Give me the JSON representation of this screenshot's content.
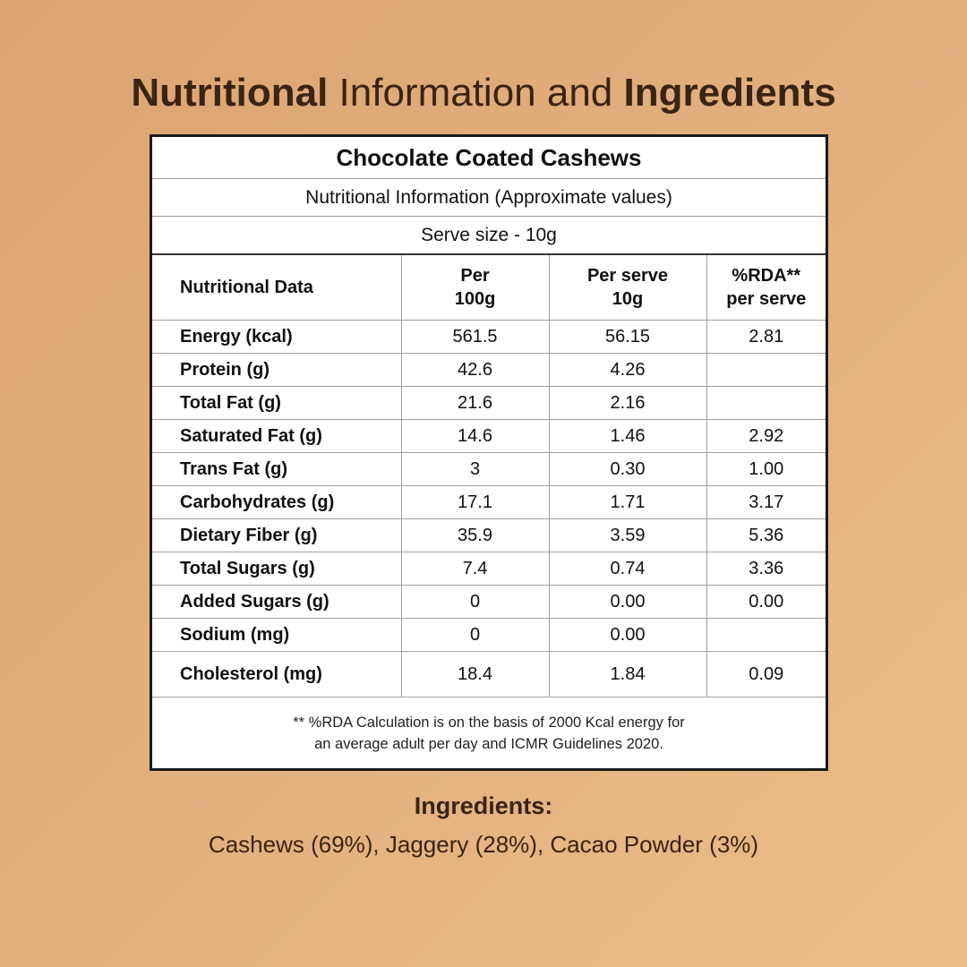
{
  "heading": {
    "part1": "Nutritional",
    "part2": " Information and ",
    "part3": "Ingredients"
  },
  "card": {
    "title": "Chocolate Coated Cashews",
    "subtitle": "Nutritional Information (Approximate values)",
    "serve_size": "Serve size - 10g",
    "headers": {
      "name": "Nutritional Data",
      "per100_l1": "Per",
      "per100_l2": "100g",
      "perserve_l1": "Per serve",
      "perserve_l2": "10g",
      "rda_l1": "%RDA**",
      "rda_l2": "per serve"
    },
    "rows": [
      {
        "name": "Energy (kcal)",
        "per100": "561.5",
        "perserve": "56.15",
        "rda": "2.81"
      },
      {
        "name": "Protein (g)",
        "per100": "42.6",
        "perserve": "4.26",
        "rda": ""
      },
      {
        "name": "Total Fat (g)",
        "per100": "21.6",
        "perserve": "2.16",
        "rda": ""
      },
      {
        "name": "Saturated Fat (g)",
        "per100": "14.6",
        "perserve": "1.46",
        "rda": "2.92"
      },
      {
        "name": "Trans Fat (g)",
        "per100": "3",
        "perserve": "0.30",
        "rda": "1.00"
      },
      {
        "name": "Carbohydrates (g)",
        "per100": "17.1",
        "perserve": "1.71",
        "rda": "3.17"
      },
      {
        "name": "Dietary Fiber (g)",
        "per100": "35.9",
        "perserve": "3.59",
        "rda": "5.36"
      },
      {
        "name": "Total Sugars (g)",
        "per100": "7.4",
        "perserve": "0.74",
        "rda": "3.36"
      },
      {
        "name": "Added Sugars (g)",
        "per100": "0",
        "perserve": "0.00",
        "rda": "0.00"
      },
      {
        "name": "Sodium (mg)",
        "per100": "0",
        "perserve": "0.00",
        "rda": ""
      },
      {
        "name": "Cholesterol (mg)",
        "per100": "18.4",
        "perserve": "1.84",
        "rda": "0.09"
      }
    ],
    "footnote_l1": "** %RDA Calculation is on the basis of 2000 Kcal energy for",
    "footnote_l2": "an average adult per day and ICMR Guidelines 2020."
  },
  "ingredients": {
    "title": "Ingredients:",
    "text": "Cashews (69%), Jaggery (28%), Cacao Powder (3%)"
  }
}
